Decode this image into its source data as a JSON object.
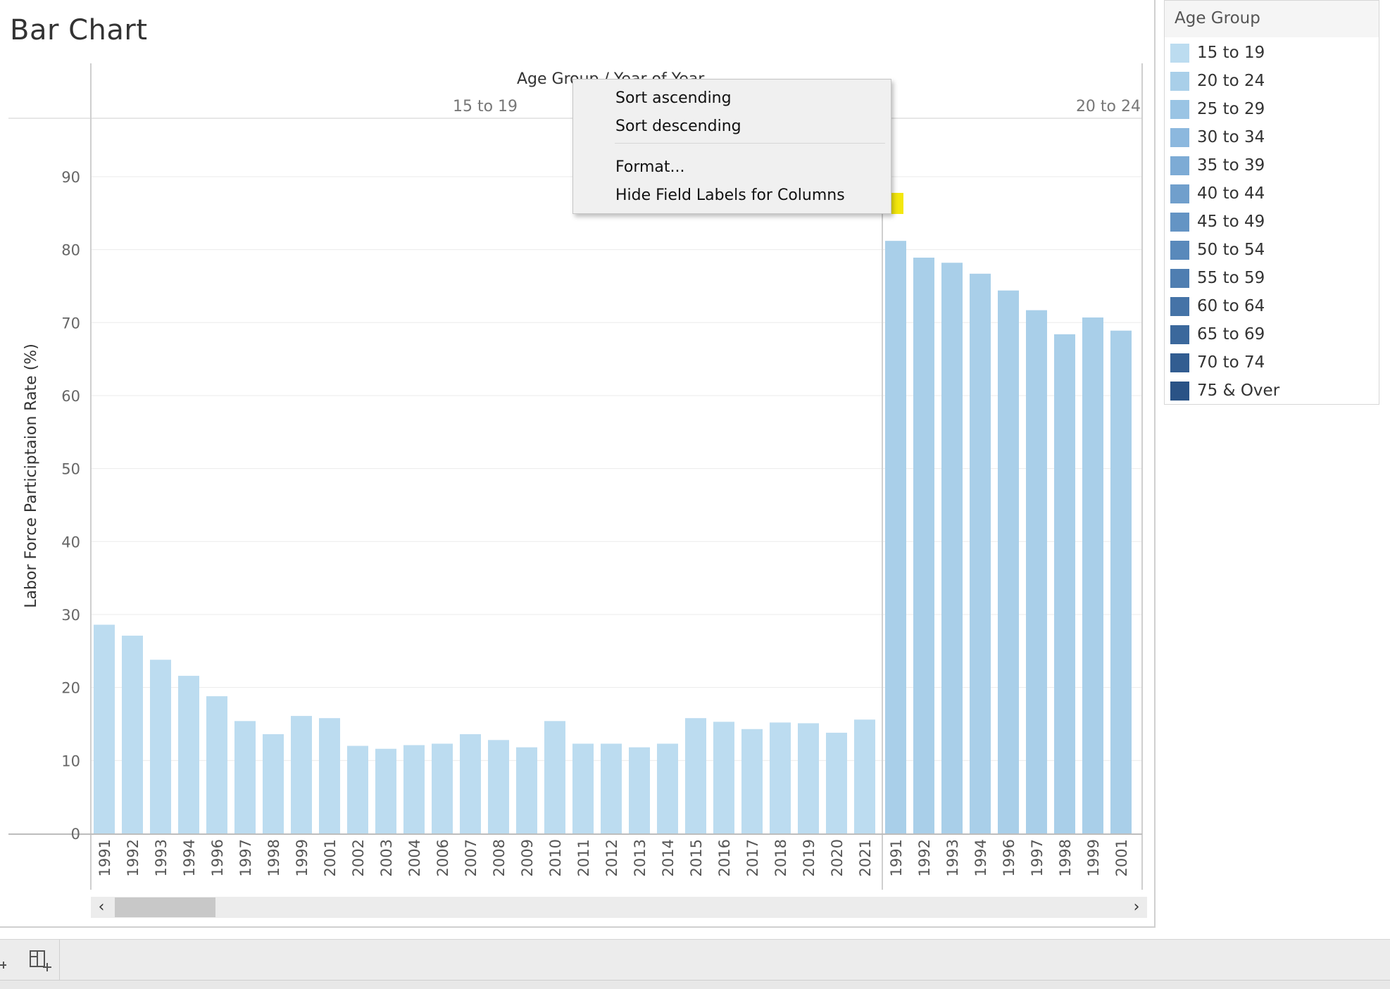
{
  "title": "Bar Chart",
  "context_menu": {
    "items": [
      "Sort ascending",
      "Sort descending",
      "Format...",
      "Hide Field Labels for Columns"
    ],
    "highlighted_index": 3
  },
  "scrollbar": {
    "left_arrow": "‹",
    "right_arrow": "›"
  },
  "legend": {
    "title": "Age Group",
    "items": [
      {
        "label": "15 to 19",
        "color": "#bcdcf0"
      },
      {
        "label": "20 to 24",
        "color": "#a9cfe9"
      },
      {
        "label": "25 to 29",
        "color": "#9ac4e4"
      },
      {
        "label": "30 to 34",
        "color": "#8cb8de"
      },
      {
        "label": "35 to 39",
        "color": "#7dabd5"
      },
      {
        "label": "40 to 44",
        "color": "#709fcc"
      },
      {
        "label": "45 to 49",
        "color": "#6494c4"
      },
      {
        "label": "50 to 54",
        "color": "#5989bb"
      },
      {
        "label": "55 to 59",
        "color": "#4f7eb1"
      },
      {
        "label": "60 to 64",
        "color": "#4573a7"
      },
      {
        "label": "65 to 69",
        "color": "#3b689c"
      },
      {
        "label": "70 to 74",
        "color": "#325d91"
      },
      {
        "label": "75 & Over",
        "color": "#2a5386"
      }
    ]
  },
  "chart_data": {
    "type": "bar",
    "column_field_label": "Age Group  /  Year of Year",
    "ylabel": "Labor Force Participtaion Rate (%)",
    "ylim": [
      0,
      98
    ],
    "yticks": [
      0,
      10,
      20,
      30,
      40,
      50,
      60,
      70,
      80,
      90
    ],
    "grid": true,
    "panes": [
      {
        "group": "15 to 19",
        "color": "#bcdcf0",
        "categories": [
          "1991",
          "1992",
          "1993",
          "1994",
          "1996",
          "1997",
          "1998",
          "1999",
          "2001",
          "2002",
          "2003",
          "2004",
          "2006",
          "2007",
          "2008",
          "2009",
          "2010",
          "2011",
          "2012",
          "2013",
          "2014",
          "2015",
          "2016",
          "2017",
          "2018",
          "2019",
          "2020",
          "2021"
        ],
        "values": [
          28.6,
          27.1,
          23.8,
          21.6,
          18.8,
          15.4,
          13.6,
          16.1,
          15.8,
          12.0,
          11.6,
          12.1,
          12.3,
          13.6,
          12.8,
          11.8,
          15.4,
          12.3,
          12.3,
          11.8,
          12.3,
          15.8,
          15.3,
          14.3,
          15.2,
          15.1,
          13.8,
          15.6
        ]
      },
      {
        "group": "20 to 24",
        "color": "#a9cfe9",
        "categories": [
          "1991",
          "1992",
          "1993",
          "1994",
          "1996",
          "1997",
          "1998",
          "1999",
          "2001"
        ],
        "values": [
          81.2,
          78.9,
          78.2,
          76.7,
          74.4,
          71.7,
          68.4,
          70.7,
          68.9
        ]
      }
    ]
  }
}
